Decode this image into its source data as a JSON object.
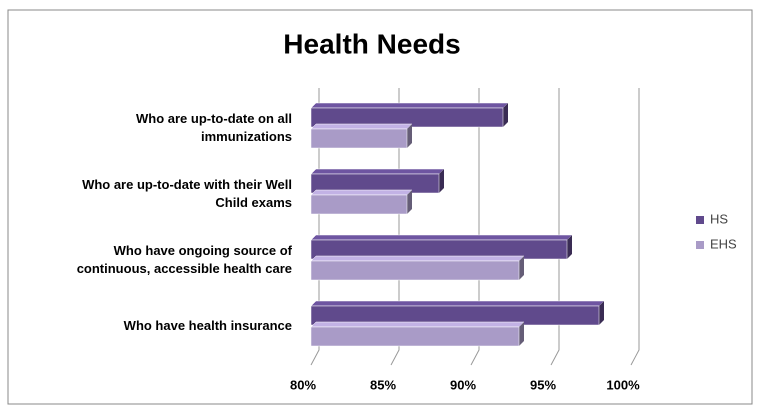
{
  "chart_data": {
    "type": "bar3d_horizontal",
    "title": "Health Needs",
    "categories": [
      "Who are up-to-date on all immunizations",
      "Who are up-to-date with their Well Child exams",
      "Who have ongoing source of continuous, accessible health care",
      "Who have health insurance"
    ],
    "series": [
      {
        "name": "HS",
        "color": "#604a8c",
        "values": [
          92,
          88,
          96,
          98
        ]
      },
      {
        "name": "EHS",
        "color": "#a99bc7",
        "values": [
          86,
          86,
          93,
          93
        ]
      }
    ],
    "xlim": [
      80,
      100
    ],
    "xticks": [
      {
        "value": 80,
        "label": "80%"
      },
      {
        "value": 85,
        "label": "85%"
      },
      {
        "value": 90,
        "label": "90%"
      },
      {
        "value": 95,
        "label": "95%"
      },
      {
        "value": 100,
        "label": "100%"
      }
    ],
    "grid": true,
    "legend": "right"
  }
}
